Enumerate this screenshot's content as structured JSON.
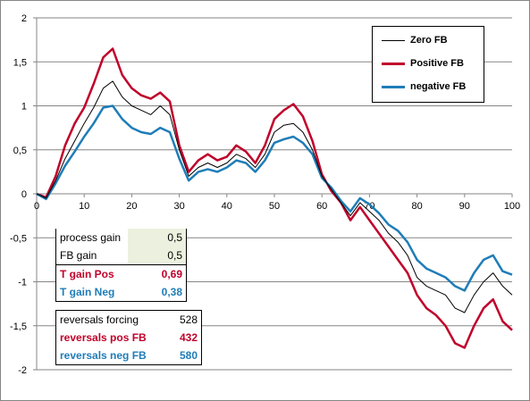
{
  "chart_data": {
    "type": "line",
    "xlim": [
      0,
      100
    ],
    "ylim": [
      -2,
      2
    ],
    "x_ticks": [
      0,
      10,
      20,
      30,
      40,
      50,
      60,
      70,
      80,
      90,
      100
    ],
    "y_ticks": [
      -2,
      -1.5,
      -1,
      -0.5,
      0,
      0.5,
      1,
      1.5,
      2
    ],
    "y_tick_labels": [
      "-2",
      "-1,5",
      "-1",
      "-0,5",
      "0",
      "0,5",
      "1",
      "1,5",
      "2"
    ],
    "grid": "horizontal",
    "legend_position": "top-right",
    "x": [
      0,
      2,
      4,
      6,
      8,
      10,
      12,
      14,
      16,
      18,
      20,
      22,
      24,
      26,
      28,
      30,
      32,
      34,
      36,
      38,
      40,
      42,
      44,
      46,
      48,
      50,
      52,
      54,
      56,
      58,
      60,
      62,
      64,
      66,
      68,
      70,
      72,
      74,
      76,
      78,
      80,
      82,
      84,
      86,
      88,
      90,
      92,
      94,
      96,
      98,
      100
    ],
    "series": [
      {
        "name": "Zero FB",
        "color": "#000000",
        "values": [
          0,
          -0.05,
          0.15,
          0.4,
          0.6,
          0.8,
          0.98,
          1.2,
          1.28,
          1.1,
          1.0,
          0.95,
          0.9,
          1.0,
          0.9,
          0.5,
          0.2,
          0.3,
          0.35,
          0.3,
          0.35,
          0.45,
          0.4,
          0.3,
          0.45,
          0.7,
          0.78,
          0.8,
          0.7,
          0.5,
          0.2,
          0.05,
          -0.1,
          -0.25,
          -0.1,
          -0.2,
          -0.3,
          -0.45,
          -0.55,
          -0.7,
          -0.95,
          -1.05,
          -1.1,
          -1.15,
          -1.3,
          -1.35,
          -1.15,
          -1.0,
          -0.9,
          -1.05,
          -1.15
        ]
      },
      {
        "name": "Positive FB",
        "color": "#c0002a",
        "values": [
          0,
          -0.04,
          0.2,
          0.55,
          0.8,
          0.98,
          1.25,
          1.55,
          1.65,
          1.35,
          1.2,
          1.12,
          1.08,
          1.15,
          1.05,
          0.55,
          0.25,
          0.38,
          0.45,
          0.38,
          0.42,
          0.55,
          0.48,
          0.35,
          0.55,
          0.85,
          0.95,
          1.02,
          0.88,
          0.6,
          0.22,
          0.03,
          -0.1,
          -0.3,
          -0.15,
          -0.3,
          -0.45,
          -0.6,
          -0.75,
          -0.9,
          -1.15,
          -1.3,
          -1.38,
          -1.5,
          -1.7,
          -1.75,
          -1.5,
          -1.3,
          -1.2,
          -1.45,
          -1.55
        ]
      },
      {
        "name": "negative FB",
        "color": "#1f7db8",
        "values": [
          0,
          -0.06,
          0.12,
          0.32,
          0.48,
          0.65,
          0.8,
          0.98,
          1.0,
          0.85,
          0.75,
          0.7,
          0.68,
          0.75,
          0.7,
          0.4,
          0.15,
          0.25,
          0.28,
          0.25,
          0.3,
          0.38,
          0.35,
          0.25,
          0.38,
          0.58,
          0.62,
          0.65,
          0.58,
          0.45,
          0.18,
          0.07,
          -0.08,
          -0.2,
          -0.05,
          -0.12,
          -0.22,
          -0.35,
          -0.42,
          -0.55,
          -0.75,
          -0.85,
          -0.9,
          -0.95,
          -1.05,
          -1.1,
          -0.9,
          -0.75,
          -0.7,
          -0.88,
          -0.92
        ]
      }
    ]
  },
  "params_table": {
    "rows": [
      {
        "label": "process gain",
        "value": "0,5",
        "style": "plain"
      },
      {
        "label": "FB gain",
        "value": "0,5",
        "style": "plain"
      },
      {
        "label": "T gain Pos",
        "value": "0,69",
        "style": "red"
      },
      {
        "label": "T gain Neg",
        "value": "0,38",
        "style": "blue"
      }
    ]
  },
  "reversals_table": {
    "rows": [
      {
        "label": "reversals forcing",
        "value": "528",
        "style": "plain"
      },
      {
        "label": "reversals pos FB",
        "value": "432",
        "style": "red"
      },
      {
        "label": "reversals neg FB",
        "value": "580",
        "style": "blue"
      }
    ]
  }
}
